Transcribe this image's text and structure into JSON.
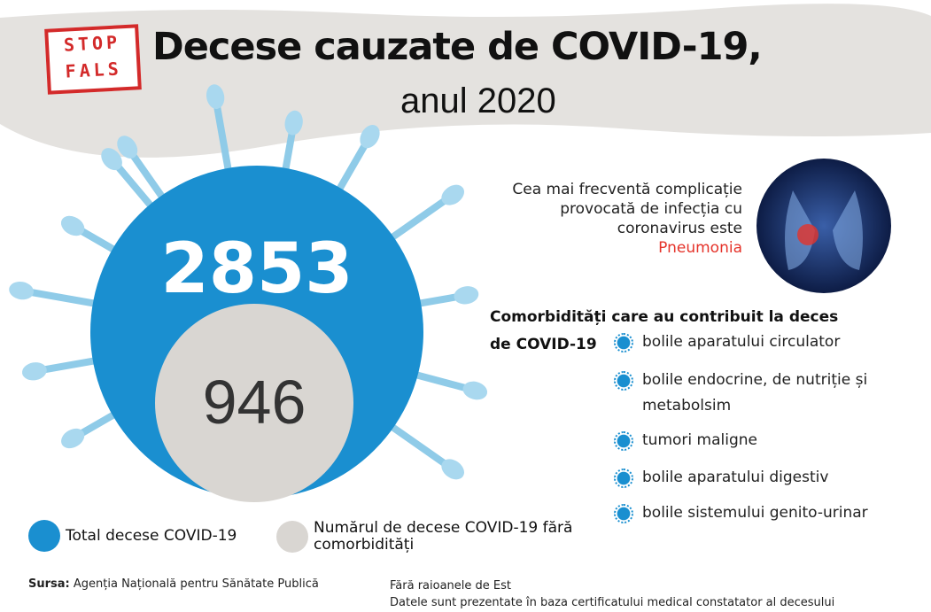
{
  "logo": {
    "line1": "STOP",
    "line2": "FALS"
  },
  "header": {
    "title": "Decese cauzate de COVID-19,",
    "subtitle": "anul 2020"
  },
  "totals": {
    "total": 2853,
    "without_comorbidities": 946
  },
  "pneumonia": {
    "text": "Cea mai frecventă complicație provocată de infecția cu coronavirus este",
    "highlight": "Pneumonia"
  },
  "comorbidities": {
    "title": "Comorbidități care au contribuit la deces de COVID-19",
    "items": [
      "bolile aparatului circulator",
      "bolile endocrine, de nutriție și metabolsim",
      "tumori maligne",
      "bolile aparatului digestiv",
      "bolile sistemului genito-urinar"
    ]
  },
  "legend": [
    {
      "label": "Total decese COVID-19",
      "color": "#1a8fd0"
    },
    {
      "label": "Numărul de decese COVID-19 fără comorbidități",
      "color": "#d9d6d2"
    }
  ],
  "footer": {
    "source_label": "Sursa:",
    "source": "Agenția Națională pentru Sănătate Publică",
    "notes": [
      "Fără raioanele de Est",
      "Datele sunt prezentate în baza certificatului medical constatator al decesului"
    ]
  }
}
